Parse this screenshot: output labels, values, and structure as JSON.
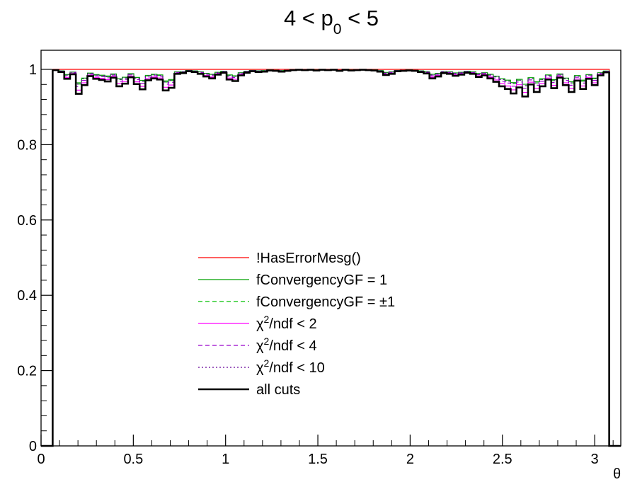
{
  "chart_data": {
    "type": "line",
    "title": {
      "main": "4 < p",
      "sub": "0",
      "tail": " < 5"
    },
    "xlabel": "θ",
    "ylabel": "",
    "xlim": [
      0,
      3.1416
    ],
    "ylim": [
      0,
      1.05
    ],
    "xticks": [
      0,
      0.5,
      1,
      1.5,
      2,
      2.5,
      3
    ],
    "xtick_labels": [
      "0",
      "0.5",
      "1",
      "1.5",
      "2",
      "2.5",
      "3"
    ],
    "yticks": [
      0,
      0.2,
      0.4,
      0.6,
      0.8,
      1
    ],
    "ytick_labels": [
      "0",
      "0.2",
      "0.4",
      "0.6",
      "0.8",
      "1"
    ],
    "grid": false,
    "legend_position": "center-left",
    "bins": {
      "nbins": 100,
      "first_filled": 2,
      "last_filled": 97
    },
    "all_cuts_values": [
      0.998,
      0.993,
      0.975,
      0.987,
      0.935,
      0.958,
      0.982,
      0.975,
      0.972,
      0.968,
      0.978,
      0.955,
      0.962,
      0.979,
      0.961,
      0.947,
      0.971,
      0.976,
      0.973,
      0.944,
      0.951,
      0.988,
      0.99,
      0.995,
      0.993,
      0.988,
      0.981,
      0.976,
      0.986,
      0.991,
      0.973,
      0.969,
      0.984,
      0.991,
      0.995,
      0.993,
      0.994,
      0.997,
      0.996,
      0.994,
      0.996,
      0.998,
      0.999,
      0.998,
      0.999,
      0.997,
      0.999,
      0.998,
      0.999,
      0.996,
      0.999,
      0.997,
      0.998,
      0.999,
      0.998,
      0.997,
      0.994,
      0.985,
      0.988,
      0.995,
      0.996,
      0.997,
      0.996,
      0.993,
      0.989,
      0.976,
      0.981,
      0.99,
      0.988,
      0.983,
      0.986,
      0.991,
      0.988,
      0.98,
      0.984,
      0.976,
      0.967,
      0.955,
      0.948,
      0.936,
      0.952,
      0.928,
      0.96,
      0.94,
      0.955,
      0.973,
      0.95,
      0.978,
      0.958,
      0.94,
      0.97,
      0.948,
      0.975,
      0.958,
      0.984,
      0.992,
      1.0,
      1.0
    ],
    "series": [
      {
        "name": "!HasErrorMesg()",
        "color": "#ff0000",
        "style": "solid",
        "width": 1.2,
        "factor": 0.0
      },
      {
        "name": "fConvergencyGF = 1",
        "color": "#00a000",
        "style": "solid",
        "width": 1.2,
        "factor": 0.55
      },
      {
        "name": "fConvergencyGF = ±1",
        "color": "#00c000",
        "style": "dashed",
        "width": 1.2,
        "factor": 0.6
      },
      {
        "name": "χ2/ndf < 2",
        "label_main": "χ",
        "label_sup": "2",
        "label_tail": "/ndf < 2",
        "color": "#ff00ff",
        "style": "solid",
        "width": 1.2,
        "factor": 0.85
      },
      {
        "name": "χ2/ndf < 4",
        "label_main": "χ",
        "label_sup": "2",
        "label_tail": "/ndf < 4",
        "color": "#9900cc",
        "style": "dashed",
        "width": 1.2,
        "factor": 0.7
      },
      {
        "name": "χ2/ndf < 10",
        "label_main": "χ",
        "label_sup": "2",
        "label_tail": "/ndf < 10",
        "color": "#660099",
        "style": "dotted",
        "width": 1.2,
        "factor": 0.6
      },
      {
        "name": "all cuts",
        "color": "#000000",
        "style": "solid",
        "width": 2.6,
        "factor": 1.0
      }
    ],
    "legend_labels": [
      "!HasErrorMesg()",
      "fConvergencyGF = 1",
      "fConvergencyGF = ±1",
      "/ndf < 2",
      "/ndf < 4",
      "/ndf < 10",
      "all cuts"
    ]
  }
}
